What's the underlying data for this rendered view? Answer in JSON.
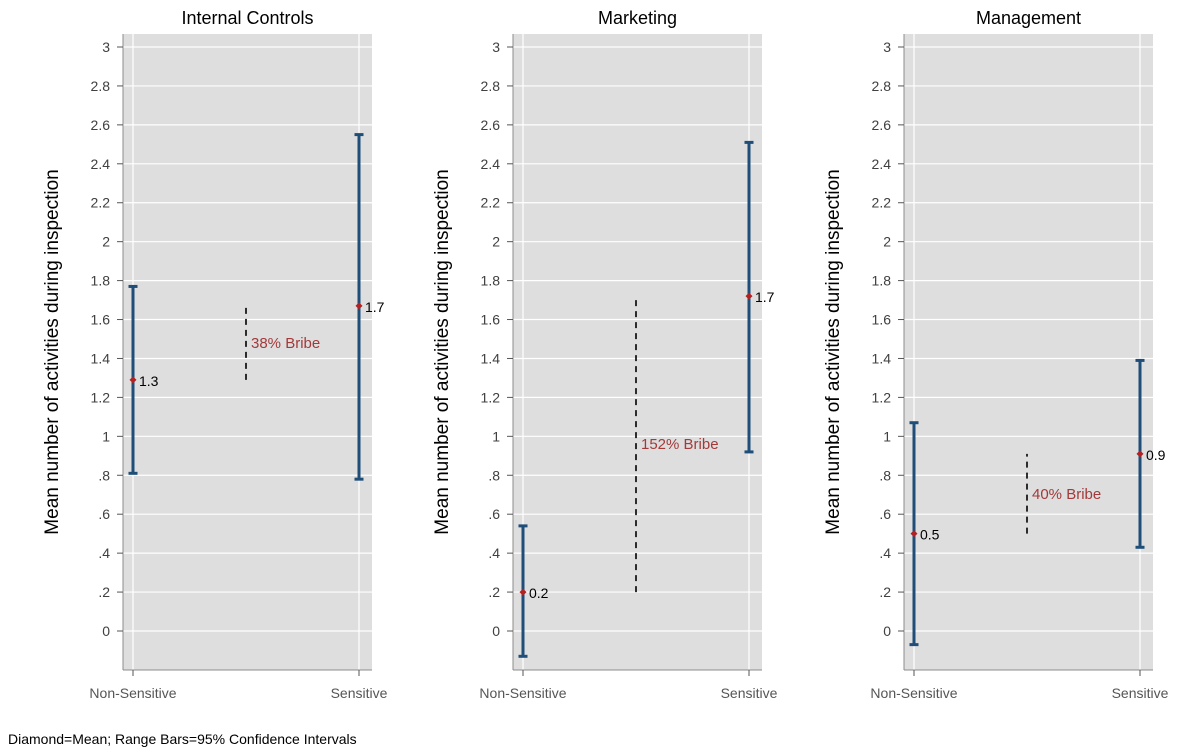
{
  "colors": {
    "plot_bg": "#dedede",
    "grid": "#ffffff",
    "bar": "#1f4e79",
    "mean_marker": "#b22222",
    "bribe_text": "#a33a3a",
    "bribe_line": "#000000",
    "axis": "#8c8c8c"
  },
  "note": "Diamond=Mean; Range Bars=95% Confidence Intervals",
  "chart_data": [
    {
      "type": "errorbar",
      "title": "Internal Controls",
      "ylabel": "Mean number of activities during inspection",
      "categories": [
        "Non-Sensitive",
        "Sensitive"
      ],
      "ylim": [
        -0.2,
        3.05
      ],
      "yticks": [
        0,
        0.2,
        0.4,
        0.6,
        0.8,
        1,
        1.2,
        1.4,
        1.6,
        1.8,
        2,
        2.2,
        2.4,
        2.6,
        2.8,
        3
      ],
      "ytick_labels": [
        "0",
        ".2",
        ".4",
        ".6",
        ".8",
        "1",
        "1.2",
        "1.4",
        "1.6",
        "1.8",
        "2",
        "2.2",
        "2.4",
        "2.6",
        "2.8",
        "3"
      ],
      "means": [
        1.29,
        1.67
      ],
      "ci_low": [
        0.81,
        0.78
      ],
      "ci_high": [
        1.77,
        2.55
      ],
      "mean_labels": [
        "1.3",
        "1.7"
      ],
      "bribe": {
        "label": "38% Bribe",
        "from": 1.29,
        "to": 1.67
      },
      "grid": true
    },
    {
      "type": "errorbar",
      "title": "Marketing",
      "ylabel": "Mean number of activities during inspection",
      "categories": [
        "Non-Sensitive",
        "Sensitive"
      ],
      "ylim": [
        -0.2,
        3.05
      ],
      "yticks": [
        0,
        0.2,
        0.4,
        0.6,
        0.8,
        1,
        1.2,
        1.4,
        1.6,
        1.8,
        2,
        2.2,
        2.4,
        2.6,
        2.8,
        3
      ],
      "ytick_labels": [
        "0",
        ".2",
        ".4",
        ".6",
        ".8",
        "1",
        "1.2",
        "1.4",
        "1.6",
        "1.8",
        "2",
        "2.2",
        "2.4",
        "2.6",
        "2.8",
        "3"
      ],
      "means": [
        0.2,
        1.72
      ],
      "ci_low": [
        -0.13,
        0.92
      ],
      "ci_high": [
        0.54,
        2.51
      ],
      "mean_labels": [
        "0.2",
        "1.7"
      ],
      "bribe": {
        "label": "152% Bribe",
        "from": 0.2,
        "to": 1.72
      },
      "grid": true
    },
    {
      "type": "errorbar",
      "title": "Management",
      "ylabel": "Mean number of activities during inspection",
      "categories": [
        "Non-Sensitive",
        "Sensitive"
      ],
      "ylim": [
        -0.2,
        3.05
      ],
      "yticks": [
        0,
        0.2,
        0.4,
        0.6,
        0.8,
        1,
        1.2,
        1.4,
        1.6,
        1.8,
        2,
        2.2,
        2.4,
        2.6,
        2.8,
        3
      ],
      "ytick_labels": [
        "0",
        ".2",
        ".4",
        ".6",
        ".8",
        "1",
        "1.2",
        "1.4",
        "1.6",
        "1.8",
        "2",
        "2.2",
        "2.4",
        "2.6",
        "2.8",
        "3"
      ],
      "means": [
        0.5,
        0.91
      ],
      "ci_low": [
        -0.07,
        0.43
      ],
      "ci_high": [
        1.07,
        1.39
      ],
      "mean_labels": [
        "0.5",
        "0.9"
      ],
      "bribe": {
        "label": "40% Bribe",
        "from": 0.5,
        "to": 0.91
      },
      "grid": true
    }
  ]
}
